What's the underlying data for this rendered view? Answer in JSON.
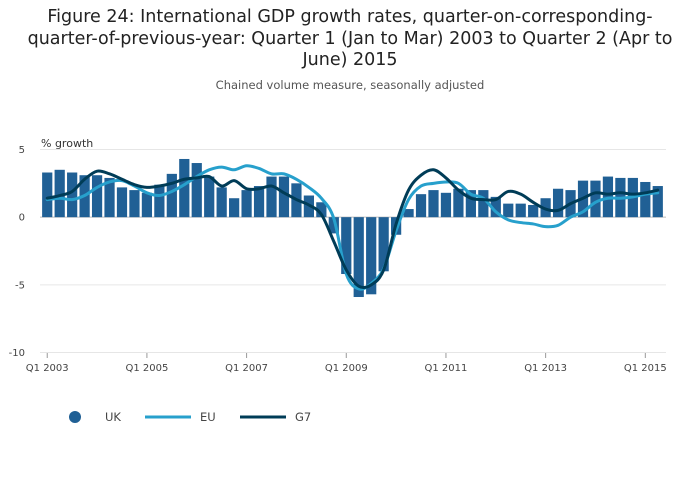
{
  "chart_data": {
    "type": "bar",
    "title": "Figure 24: International GDP growth rates, quarter-on-corresponding-quarter-of-previous-year: Quarter 1 (Jan to Mar) 2003 to Quarter 2 (Apr to June) 2015",
    "subtitle": "Chained volume measure, seasonally adjusted",
    "ylabel": "% growth",
    "ylim": [
      -10,
      5
    ],
    "yticks": [
      5,
      0,
      -5,
      -10
    ],
    "grid": true,
    "legend_position": "bottom-left",
    "categories": [
      "Q1 2003",
      "Q2 2003",
      "Q3 2003",
      "Q4 2003",
      "Q1 2004",
      "Q2 2004",
      "Q3 2004",
      "Q4 2004",
      "Q1 2005",
      "Q2 2005",
      "Q3 2005",
      "Q4 2005",
      "Q1 2006",
      "Q2 2006",
      "Q3 2006",
      "Q4 2006",
      "Q1 2007",
      "Q2 2007",
      "Q3 2007",
      "Q4 2007",
      "Q1 2008",
      "Q2 2008",
      "Q3 2008",
      "Q4 2008",
      "Q1 2009",
      "Q2 2009",
      "Q3 2009",
      "Q4 2009",
      "Q1 2010",
      "Q2 2010",
      "Q3 2010",
      "Q4 2010",
      "Q1 2011",
      "Q2 2011",
      "Q3 2011",
      "Q4 2011",
      "Q1 2012",
      "Q2 2012",
      "Q3 2012",
      "Q4 2012",
      "Q1 2013",
      "Q2 2013",
      "Q3 2013",
      "Q4 2013",
      "Q1 2014",
      "Q2 2014",
      "Q3 2014",
      "Q4 2014",
      "Q1 2015",
      "Q2 2015"
    ],
    "xtick_labels": [
      "Q1 2003",
      "Q1 2005",
      "Q1 2007",
      "Q1 2009",
      "Q1 2011",
      "Q1 2013",
      "Q1 2015"
    ],
    "series": [
      {
        "name": "UK",
        "type": "bar",
        "color": "#206095",
        "values": [
          3.3,
          3.5,
          3.3,
          3.1,
          3.1,
          2.9,
          2.2,
          2.0,
          1.8,
          2.4,
          3.2,
          4.3,
          4.0,
          3.0,
          2.2,
          1.4,
          2.0,
          2.3,
          3.0,
          3.0,
          2.5,
          1.6,
          1.1,
          -1.2,
          -4.2,
          -5.9,
          -5.7,
          -4.0,
          -1.3,
          0.6,
          1.7,
          2.0,
          1.8,
          2.1,
          2.0,
          2.0,
          1.5,
          1.0,
          1.0,
          0.9,
          1.4,
          2.1,
          2.0,
          2.7,
          2.7,
          3.0,
          2.9,
          2.9,
          2.6,
          2.3
        ]
      },
      {
        "name": "EU",
        "type": "line",
        "color": "#27a0cc",
        "values": [
          1.3,
          1.4,
          1.3,
          1.6,
          2.2,
          2.6,
          2.7,
          2.3,
          1.8,
          1.6,
          1.9,
          2.4,
          3.0,
          3.5,
          3.7,
          3.5,
          3.8,
          3.6,
          3.2,
          3.2,
          2.8,
          2.2,
          1.4,
          -0.1,
          -4.2,
          -5.3,
          -4.9,
          -3.8,
          -1.0,
          1.3,
          2.3,
          2.5,
          2.6,
          2.5,
          1.7,
          1.4,
          0.4,
          -0.2,
          -0.4,
          -0.5,
          -0.7,
          -0.6,
          0.0,
          0.4,
          1.1,
          1.4,
          1.4,
          1.5,
          1.7,
          1.8
        ]
      },
      {
        "name": "G7",
        "type": "line",
        "color": "#003c57",
        "values": [
          1.4,
          1.6,
          1.9,
          2.8,
          3.4,
          3.2,
          2.8,
          2.4,
          2.2,
          2.3,
          2.5,
          2.8,
          2.9,
          3.0,
          2.3,
          2.7,
          2.1,
          2.1,
          2.3,
          1.8,
          1.3,
          0.9,
          0.2,
          -1.8,
          -3.9,
          -5.1,
          -5.0,
          -3.9,
          -0.5,
          2.0,
          3.1,
          3.5,
          2.9,
          2.0,
          1.4,
          1.3,
          1.3,
          1.9,
          1.7,
          1.1,
          0.6,
          0.5,
          1.0,
          1.4,
          1.8,
          1.7,
          1.8,
          1.7,
          1.8,
          2.0
        ]
      }
    ]
  }
}
